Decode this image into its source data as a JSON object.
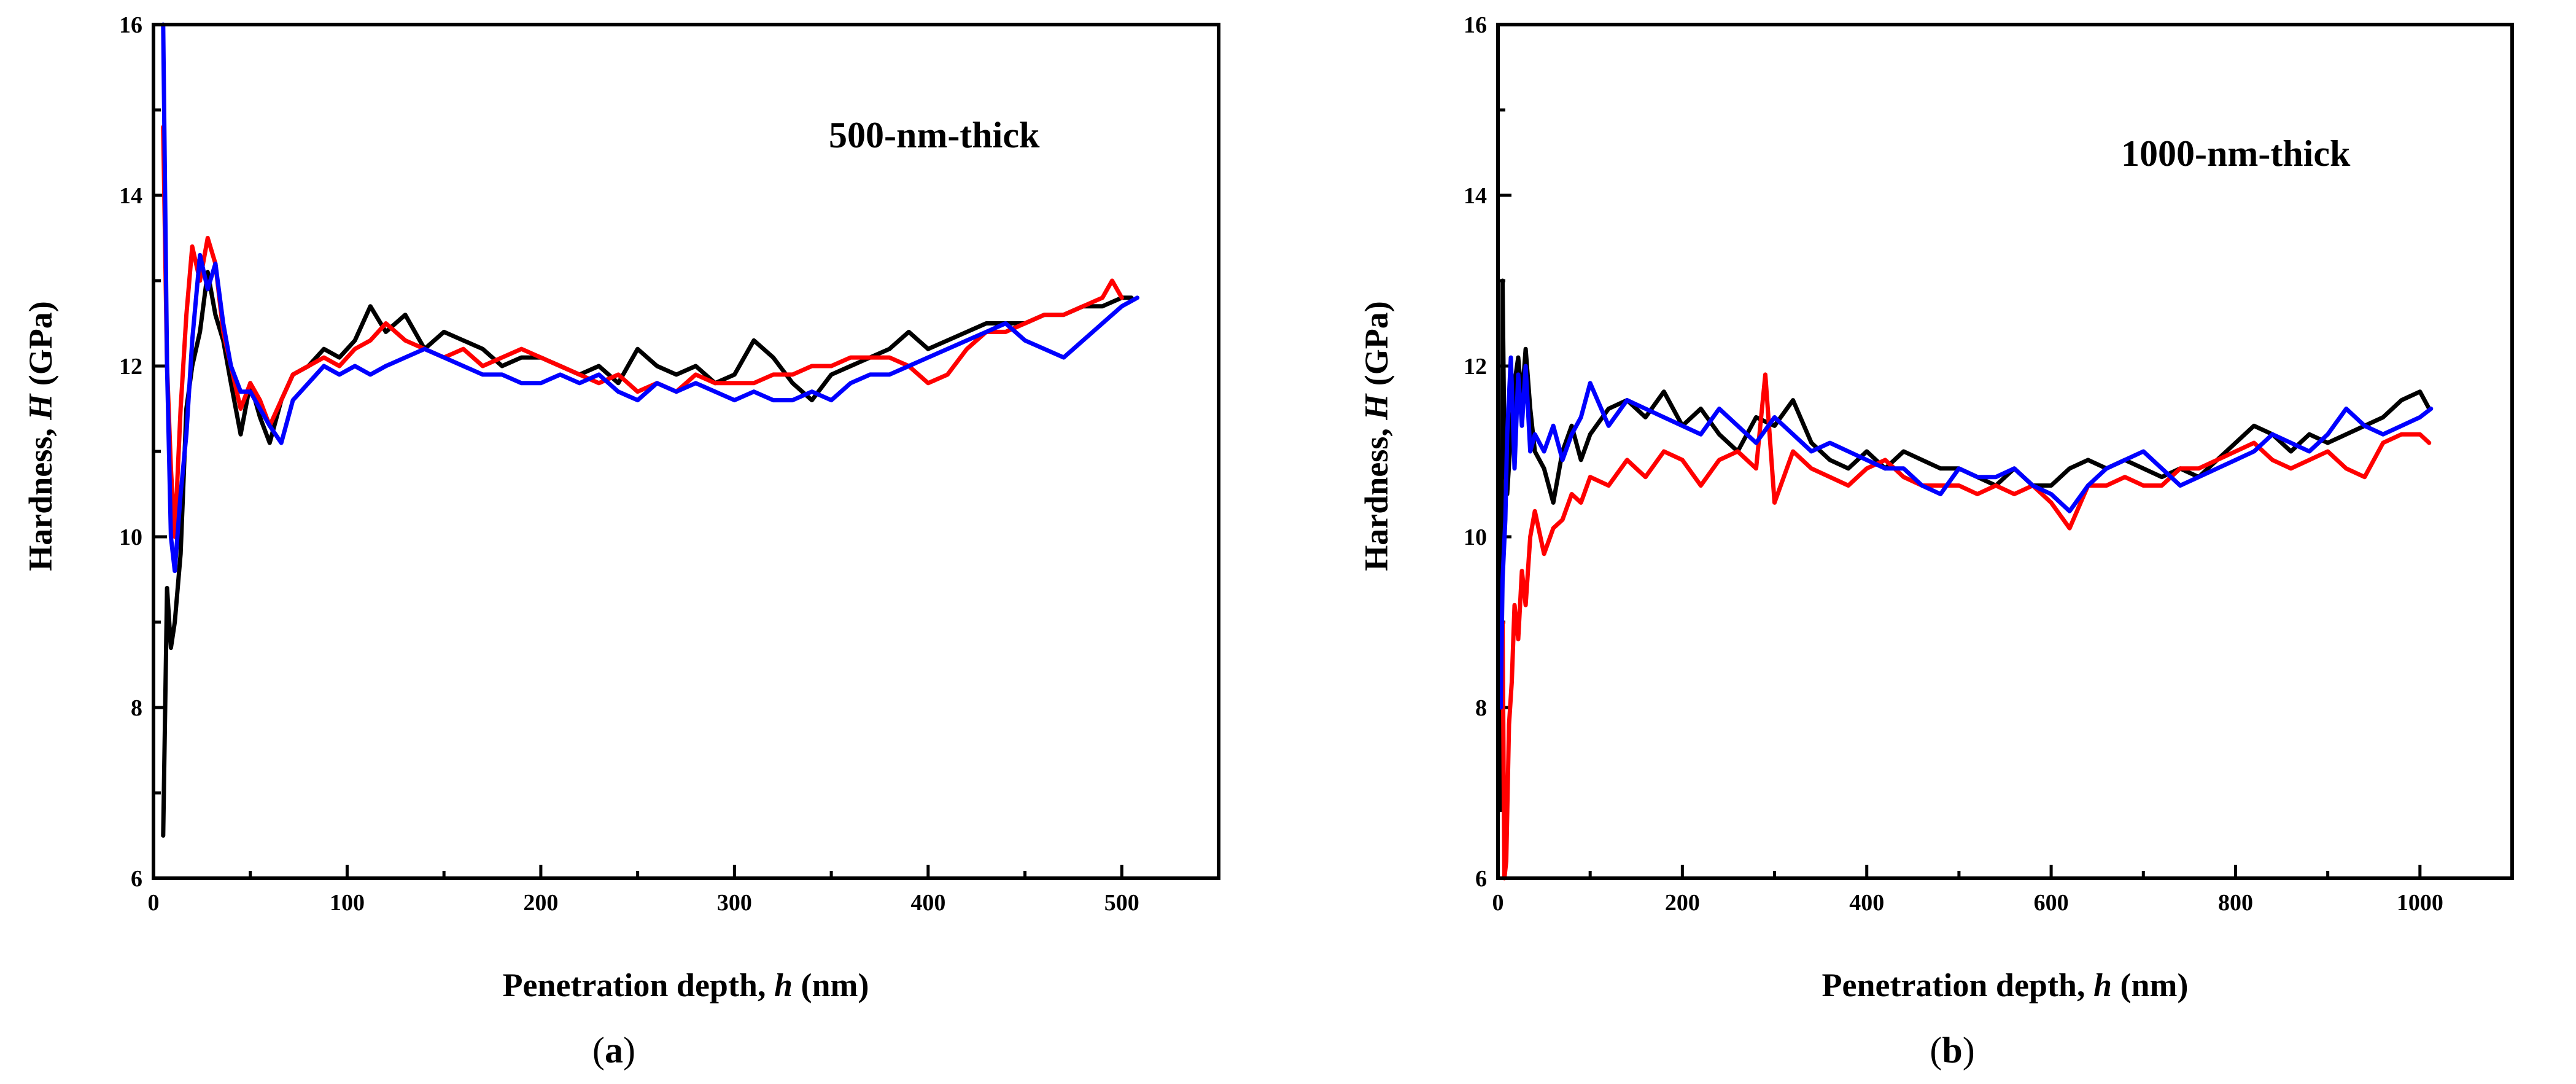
{
  "chart_data": [
    {
      "type": "line",
      "panel_label": "a",
      "annotation": "500-nm-thick",
      "xlabel_prefix": "Penetration depth, ",
      "xlabel_symbol": "h",
      "xlabel_unit": " (nm)",
      "ylabel_prefix": "Hardness, ",
      "ylabel_symbol": "H",
      "ylabel_unit": " (GPa)",
      "xlim": [
        0,
        550
      ],
      "ylim": [
        6,
        16
      ],
      "xticks": [
        0,
        100,
        200,
        300,
        400,
        500
      ],
      "yticks": [
        6,
        8,
        10,
        12,
        14,
        16
      ],
      "series": [
        {
          "name": "black",
          "color": "#000000",
          "x": [
            5,
            7,
            9,
            11,
            14,
            17,
            20,
            24,
            28,
            32,
            36,
            40,
            45,
            50,
            55,
            60,
            66,
            72,
            80,
            88,
            96,
            104,
            112,
            120,
            130,
            140,
            150,
            160,
            170,
            180,
            190,
            200,
            210,
            220,
            230,
            240,
            250,
            260,
            270,
            280,
            290,
            300,
            310,
            320,
            330,
            340,
            350,
            360,
            370,
            380,
            390,
            400,
            410,
            420,
            430,
            440,
            450,
            460,
            470,
            480,
            490,
            500,
            505
          ],
          "y": [
            6.5,
            9.4,
            8.7,
            9.0,
            9.8,
            11.5,
            12.0,
            12.4,
            13.1,
            12.6,
            12.3,
            11.8,
            11.2,
            11.8,
            11.4,
            11.1,
            11.6,
            11.9,
            12.0,
            12.2,
            12.1,
            12.3,
            12.7,
            12.4,
            12.6,
            12.2,
            12.4,
            12.3,
            12.2,
            12.0,
            12.1,
            12.1,
            12.0,
            11.9,
            12.0,
            11.8,
            12.2,
            12.0,
            11.9,
            12.0,
            11.8,
            11.9,
            12.3,
            12.1,
            11.8,
            11.6,
            11.9,
            12.0,
            12.1,
            12.2,
            12.4,
            12.2,
            12.3,
            12.4,
            12.5,
            12.5,
            12.5,
            12.6,
            12.6,
            12.7,
            12.7,
            12.8,
            12.8
          ]
        },
        {
          "name": "red",
          "color": "#ff0000",
          "x": [
            5,
            7,
            9,
            11,
            14,
            17,
            20,
            24,
            28,
            32,
            36,
            40,
            45,
            50,
            55,
            60,
            66,
            72,
            80,
            88,
            96,
            104,
            112,
            120,
            130,
            140,
            150,
            160,
            170,
            180,
            190,
            200,
            210,
            220,
            230,
            240,
            250,
            260,
            270,
            280,
            290,
            300,
            310,
            320,
            330,
            340,
            350,
            360,
            370,
            380,
            390,
            400,
            410,
            420,
            430,
            440,
            450,
            460,
            470,
            480,
            490,
            495,
            500
          ],
          "y": [
            14.8,
            12.0,
            10.8,
            10.0,
            11.5,
            12.6,
            13.4,
            13.0,
            13.5,
            13.2,
            12.4,
            12.0,
            11.5,
            11.8,
            11.6,
            11.3,
            11.6,
            11.9,
            12.0,
            12.1,
            12.0,
            12.2,
            12.3,
            12.5,
            12.3,
            12.2,
            12.1,
            12.2,
            12.0,
            12.1,
            12.2,
            12.1,
            12.0,
            11.9,
            11.8,
            11.9,
            11.7,
            11.8,
            11.7,
            11.9,
            11.8,
            11.8,
            11.8,
            11.9,
            11.9,
            12.0,
            12.0,
            12.1,
            12.1,
            12.1,
            12.0,
            11.8,
            11.9,
            12.2,
            12.4,
            12.4,
            12.5,
            12.6,
            12.6,
            12.7,
            12.8,
            13.0,
            12.8
          ]
        },
        {
          "name": "blue",
          "color": "#0000ff",
          "x": [
            5,
            7,
            9,
            11,
            14,
            17,
            20,
            24,
            28,
            32,
            36,
            40,
            45,
            50,
            55,
            60,
            66,
            72,
            80,
            88,
            96,
            104,
            112,
            120,
            130,
            140,
            150,
            160,
            170,
            180,
            190,
            200,
            210,
            220,
            230,
            240,
            250,
            260,
            270,
            280,
            290,
            300,
            310,
            320,
            330,
            340,
            350,
            360,
            370,
            380,
            390,
            400,
            410,
            420,
            430,
            440,
            450,
            460,
            470,
            480,
            490,
            500,
            508
          ],
          "y": [
            16.0,
            12.0,
            10.0,
            9.6,
            10.5,
            11.2,
            12.3,
            13.3,
            12.9,
            13.2,
            12.5,
            12.0,
            11.7,
            11.7,
            11.5,
            11.3,
            11.1,
            11.6,
            11.8,
            12.0,
            11.9,
            12.0,
            11.9,
            12.0,
            12.1,
            12.2,
            12.1,
            12.0,
            11.9,
            11.9,
            11.8,
            11.8,
            11.9,
            11.8,
            11.9,
            11.7,
            11.6,
            11.8,
            11.7,
            11.8,
            11.7,
            11.6,
            11.7,
            11.6,
            11.6,
            11.7,
            11.6,
            11.8,
            11.9,
            11.9,
            12.0,
            12.1,
            12.2,
            12.3,
            12.4,
            12.5,
            12.3,
            12.2,
            12.1,
            12.3,
            12.5,
            12.7,
            12.8
          ]
        }
      ]
    },
    {
      "type": "line",
      "panel_label": "b",
      "annotation": "1000-nm-thick",
      "xlabel_prefix": "Penetration depth, ",
      "xlabel_symbol": "h",
      "xlabel_unit": " (nm)",
      "ylabel_prefix": "Hardness, ",
      "ylabel_symbol": "H",
      "ylabel_unit": " (GPa)",
      "xlim": [
        0,
        1100
      ],
      "ylim": [
        6,
        16
      ],
      "xticks": [
        0,
        200,
        400,
        600,
        800,
        1000
      ],
      "yticks": [
        6,
        8,
        10,
        12,
        14,
        16
      ],
      "series": [
        {
          "name": "black",
          "color": "#000000",
          "x": [
            3,
            5,
            7,
            10,
            14,
            18,
            22,
            26,
            30,
            35,
            40,
            50,
            60,
            70,
            80,
            90,
            100,
            120,
            140,
            160,
            180,
            200,
            220,
            240,
            260,
            280,
            300,
            320,
            340,
            360,
            380,
            400,
            420,
            440,
            460,
            480,
            500,
            520,
            540,
            560,
            580,
            600,
            620,
            640,
            660,
            680,
            700,
            720,
            740,
            760,
            780,
            800,
            820,
            840,
            860,
            880,
            900,
            920,
            940,
            960,
            980,
            1000,
            1010
          ],
          "y": [
            6.8,
            13.0,
            11.0,
            10.5,
            11.2,
            11.8,
            12.1,
            11.6,
            12.2,
            11.5,
            11.0,
            10.8,
            10.4,
            11.0,
            11.3,
            10.9,
            11.2,
            11.5,
            11.6,
            11.4,
            11.7,
            11.3,
            11.5,
            11.2,
            11.0,
            11.4,
            11.3,
            11.6,
            11.1,
            10.9,
            10.8,
            11.0,
            10.8,
            11.0,
            10.9,
            10.8,
            10.8,
            10.7,
            10.6,
            10.8,
            10.6,
            10.6,
            10.8,
            10.9,
            10.8,
            10.9,
            10.8,
            10.7,
            10.8,
            10.7,
            10.9,
            11.1,
            11.3,
            11.2,
            11.0,
            11.2,
            11.1,
            11.2,
            11.3,
            11.4,
            11.6,
            11.7,
            11.5
          ]
        },
        {
          "name": "red",
          "color": "#ff0000",
          "x": [
            5,
            7,
            9,
            12,
            15,
            18,
            22,
            26,
            30,
            35,
            40,
            50,
            60,
            70,
            80,
            90,
            100,
            120,
            140,
            160,
            180,
            200,
            220,
            240,
            260,
            280,
            290,
            300,
            320,
            340,
            360,
            380,
            400,
            420,
            440,
            460,
            480,
            500,
            520,
            540,
            560,
            580,
            600,
            620,
            640,
            660,
            680,
            700,
            720,
            740,
            760,
            780,
            800,
            820,
            840,
            860,
            880,
            900,
            920,
            940,
            960,
            980,
            1000,
            1010
          ],
          "y": [
            9.0,
            6.0,
            6.2,
            7.8,
            8.3,
            9.2,
            8.8,
            9.6,
            9.2,
            10.0,
            10.3,
            9.8,
            10.1,
            10.2,
            10.5,
            10.4,
            10.7,
            10.6,
            10.9,
            10.7,
            11.0,
            10.9,
            10.6,
            10.9,
            11.0,
            10.8,
            11.9,
            10.4,
            11.0,
            10.8,
            10.7,
            10.6,
            10.8,
            10.9,
            10.7,
            10.6,
            10.6,
            10.6,
            10.5,
            10.6,
            10.5,
            10.6,
            10.4,
            10.1,
            10.6,
            10.6,
            10.7,
            10.6,
            10.6,
            10.8,
            10.8,
            10.9,
            11.0,
            11.1,
            10.9,
            10.8,
            10.9,
            11.0,
            10.8,
            10.7,
            11.1,
            11.2,
            11.2,
            11.1
          ]
        },
        {
          "name": "blue",
          "color": "#0000ff",
          "x": [
            3,
            5,
            8,
            10,
            14,
            18,
            22,
            26,
            30,
            35,
            40,
            50,
            60,
            70,
            80,
            90,
            100,
            120,
            140,
            160,
            180,
            200,
            220,
            240,
            260,
            280,
            300,
            320,
            340,
            360,
            380,
            400,
            420,
            440,
            460,
            480,
            500,
            520,
            540,
            560,
            580,
            600,
            620,
            640,
            660,
            680,
            700,
            720,
            740,
            760,
            780,
            800,
            820,
            840,
            860,
            880,
            900,
            920,
            940,
            960,
            980,
            1000,
            1012
          ],
          "y": [
            8.0,
            9.5,
            10.2,
            11.2,
            12.1,
            10.8,
            11.9,
            11.3,
            12.0,
            11.0,
            11.2,
            11.0,
            11.3,
            10.9,
            11.2,
            11.4,
            11.8,
            11.3,
            11.6,
            11.5,
            11.4,
            11.3,
            11.2,
            11.5,
            11.3,
            11.1,
            11.4,
            11.2,
            11.0,
            11.1,
            11.0,
            10.9,
            10.8,
            10.8,
            10.6,
            10.5,
            10.8,
            10.7,
            10.7,
            10.8,
            10.6,
            10.5,
            10.3,
            10.6,
            10.8,
            10.9,
            11.0,
            10.8,
            10.6,
            10.7,
            10.8,
            10.9,
            11.0,
            11.2,
            11.1,
            11.0,
            11.2,
            11.5,
            11.3,
            11.2,
            11.3,
            11.4,
            11.5
          ]
        }
      ]
    }
  ]
}
